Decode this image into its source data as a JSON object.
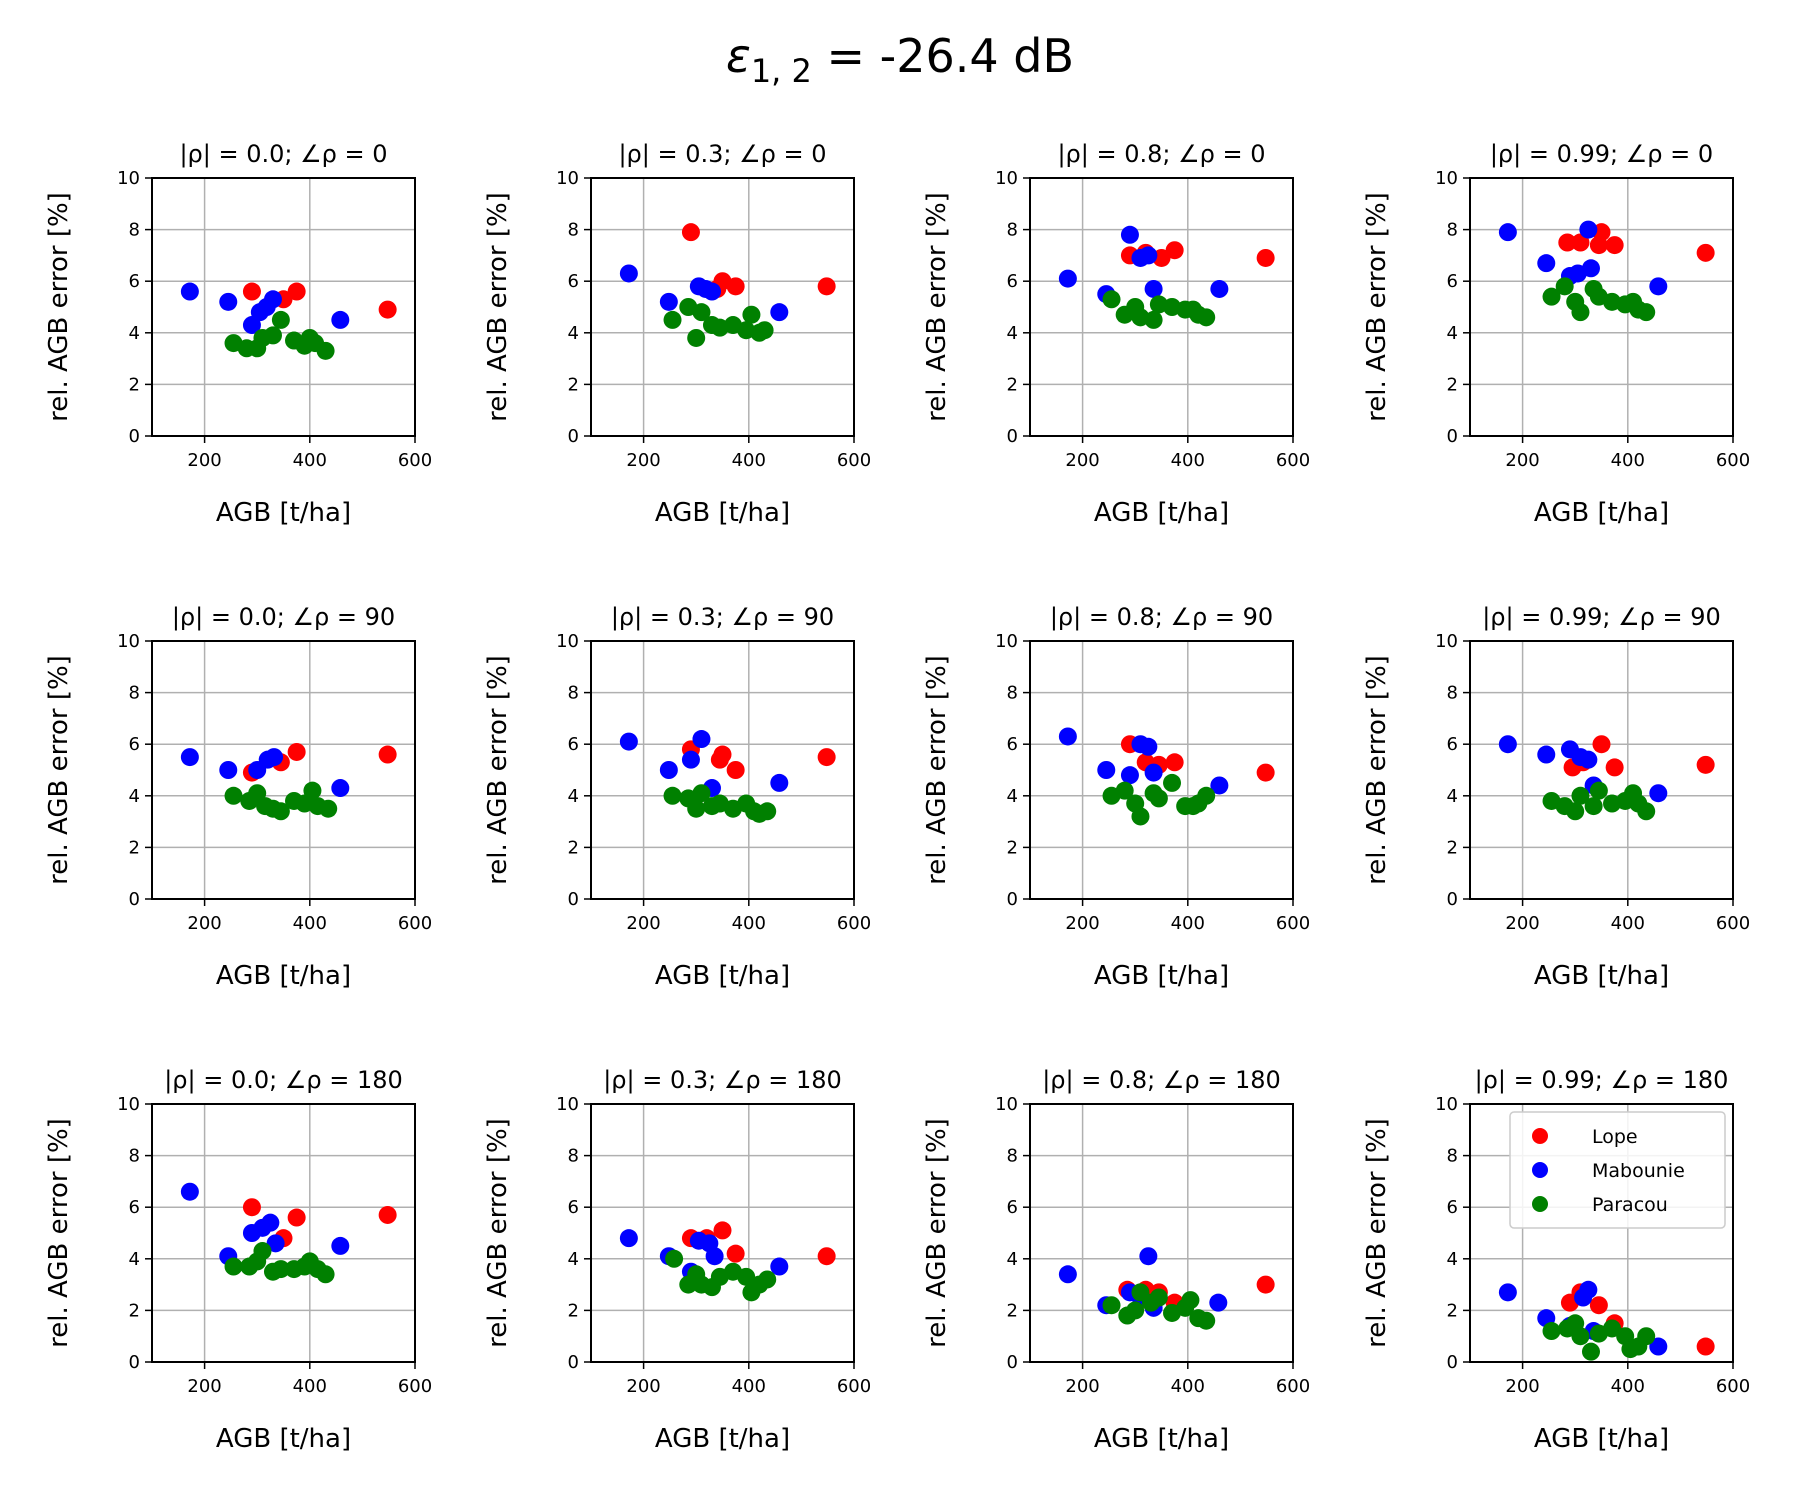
{
  "figure": {
    "title_symbol": "ε",
    "title_subscript": "1, 2",
    "title_suffix": " = -26.4 dB"
  },
  "colors": {
    "Lope": "#ff0000",
    "Mabounie": "#0000ff",
    "Paracou": "#008000",
    "grid": "#b0b0b0"
  },
  "chart_data": [
    {
      "type": "scatter",
      "title": "|ρ| = 0.0; ∠ρ =  0",
      "xlabel": "AGB [t/ha]",
      "ylabel": "rel. AGB error [%]",
      "xlim": [
        100,
        600
      ],
      "ylim": [
        0,
        10
      ],
      "xticks": [
        200,
        400,
        600
      ],
      "yticks": [
        0,
        2,
        4,
        6,
        8,
        10
      ],
      "grid": true,
      "series": [
        {
          "name": "Lope",
          "x": [
            290,
            350,
            375,
            548
          ],
          "y": [
            5.6,
            5.3,
            5.6,
            4.9
          ]
        },
        {
          "name": "Mabounie",
          "x": [
            172,
            245,
            290,
            305,
            318,
            330,
            458
          ],
          "y": [
            5.6,
            5.2,
            4.3,
            4.8,
            5.0,
            5.3,
            4.5
          ]
        },
        {
          "name": "Paracou",
          "x": [
            255,
            280,
            300,
            310,
            330,
            345,
            370,
            390,
            400,
            410,
            430
          ],
          "y": [
            3.6,
            3.4,
            3.4,
            3.8,
            3.9,
            4.5,
            3.7,
            3.5,
            3.8,
            3.6,
            3.3
          ]
        }
      ]
    },
    {
      "type": "scatter",
      "title": "|ρ| = 0.3; ∠ρ =  0",
      "xlabel": "AGB [t/ha]",
      "ylabel": "rel. AGB error [%]",
      "xlim": [
        100,
        600
      ],
      "ylim": [
        0,
        10
      ],
      "xticks": [
        200,
        400,
        600
      ],
      "yticks": [
        0,
        2,
        4,
        6,
        8,
        10
      ],
      "grid": true,
      "series": [
        {
          "name": "Lope",
          "x": [
            290,
            340,
            350,
            375,
            548
          ],
          "y": [
            7.9,
            5.7,
            6.0,
            5.8,
            5.8
          ]
        },
        {
          "name": "Mabounie",
          "x": [
            172,
            248,
            305,
            318,
            330,
            458
          ],
          "y": [
            6.3,
            5.2,
            5.8,
            5.7,
            5.6,
            4.8
          ]
        },
        {
          "name": "Paracou",
          "x": [
            255,
            285,
            300,
            310,
            330,
            345,
            370,
            395,
            405,
            420,
            430
          ],
          "y": [
            4.5,
            5.0,
            3.8,
            4.8,
            4.3,
            4.2,
            4.3,
            4.1,
            4.7,
            4.0,
            4.1
          ]
        }
      ]
    },
    {
      "type": "scatter",
      "title": "|ρ| = 0.8; ∠ρ =  0",
      "xlabel": "AGB [t/ha]",
      "ylabel": "rel. AGB error [%]",
      "xlim": [
        100,
        600
      ],
      "ylim": [
        0,
        10
      ],
      "xticks": [
        200,
        400,
        600
      ],
      "yticks": [
        0,
        2,
        4,
        6,
        8,
        10
      ],
      "grid": true,
      "series": [
        {
          "name": "Lope",
          "x": [
            290,
            320,
            350,
            375,
            548
          ],
          "y": [
            7.0,
            7.1,
            6.9,
            7.2,
            6.9
          ]
        },
        {
          "name": "Mabounie",
          "x": [
            172,
            245,
            290,
            310,
            325,
            335,
            460
          ],
          "y": [
            6.1,
            5.5,
            7.8,
            6.9,
            7.0,
            5.7,
            5.7
          ]
        },
        {
          "name": "Paracou",
          "x": [
            255,
            280,
            300,
            310,
            335,
            345,
            370,
            395,
            410,
            420,
            435
          ],
          "y": [
            5.3,
            4.7,
            5.0,
            4.6,
            4.5,
            5.1,
            5.0,
            4.9,
            4.9,
            4.7,
            4.6
          ]
        }
      ]
    },
    {
      "type": "scatter",
      "title": "|ρ| = 0.99; ∠ρ =  0",
      "xlabel": "AGB [t/ha]",
      "ylabel": "rel. AGB error [%]",
      "xlim": [
        100,
        600
      ],
      "ylim": [
        0,
        10
      ],
      "xticks": [
        200,
        400,
        600
      ],
      "yticks": [
        0,
        2,
        4,
        6,
        8,
        10
      ],
      "grid": true,
      "series": [
        {
          "name": "Lope",
          "x": [
            285,
            310,
            345,
            350,
            375,
            548
          ],
          "y": [
            7.5,
            7.5,
            7.4,
            7.9,
            7.4,
            7.1
          ]
        },
        {
          "name": "Mabounie",
          "x": [
            172,
            245,
            290,
            305,
            325,
            330,
            458
          ],
          "y": [
            7.9,
            6.7,
            6.2,
            6.3,
            8.0,
            6.5,
            5.8
          ]
        },
        {
          "name": "Paracou",
          "x": [
            255,
            280,
            300,
            310,
            335,
            345,
            370,
            395,
            410,
            420,
            435
          ],
          "y": [
            5.4,
            5.8,
            5.2,
            4.8,
            5.7,
            5.4,
            5.2,
            5.1,
            5.2,
            4.9,
            4.8
          ]
        }
      ]
    },
    {
      "type": "scatter",
      "title": "|ρ| = 0.0; ∠ρ =  90",
      "xlabel": "AGB [t/ha]",
      "ylabel": "rel. AGB error [%]",
      "xlim": [
        100,
        600
      ],
      "ylim": [
        0,
        10
      ],
      "xticks": [
        200,
        400,
        600
      ],
      "yticks": [
        0,
        2,
        4,
        6,
        8,
        10
      ],
      "grid": true,
      "series": [
        {
          "name": "Lope",
          "x": [
            290,
            345,
            375,
            548
          ],
          "y": [
            4.9,
            5.3,
            5.7,
            5.6
          ]
        },
        {
          "name": "Mabounie",
          "x": [
            172,
            245,
            300,
            320,
            332,
            458
          ],
          "y": [
            5.5,
            5.0,
            5.0,
            5.4,
            5.5,
            4.3
          ]
        },
        {
          "name": "Paracou",
          "x": [
            255,
            285,
            300,
            315,
            330,
            345,
            370,
            390,
            405,
            415,
            435
          ],
          "y": [
            4.0,
            3.8,
            4.1,
            3.6,
            3.5,
            3.4,
            3.8,
            3.7,
            4.2,
            3.6,
            3.5
          ]
        }
      ]
    },
    {
      "type": "scatter",
      "title": "|ρ| = 0.3; ∠ρ =  90",
      "xlabel": "AGB [t/ha]",
      "ylabel": "rel. AGB error [%]",
      "xlim": [
        100,
        600
      ],
      "ylim": [
        0,
        10
      ],
      "xticks": [
        200,
        400,
        600
      ],
      "yticks": [
        0,
        2,
        4,
        6,
        8,
        10
      ],
      "grid": true,
      "series": [
        {
          "name": "Lope",
          "x": [
            290,
            345,
            350,
            375,
            548
          ],
          "y": [
            5.8,
            5.4,
            5.6,
            5.0,
            5.5
          ]
        },
        {
          "name": "Mabounie",
          "x": [
            172,
            248,
            290,
            310,
            330,
            458
          ],
          "y": [
            6.1,
            5.0,
            5.4,
            6.2,
            4.3,
            4.5
          ]
        },
        {
          "name": "Paracou",
          "x": [
            255,
            285,
            300,
            310,
            330,
            345,
            370,
            395,
            410,
            420,
            435
          ],
          "y": [
            4.0,
            3.9,
            3.5,
            4.1,
            3.6,
            3.7,
            3.5,
            3.7,
            3.4,
            3.3,
            3.4
          ]
        }
      ]
    },
    {
      "type": "scatter",
      "title": "|ρ| = 0.8; ∠ρ =  90",
      "xlabel": "AGB [t/ha]",
      "ylabel": "rel. AGB error [%]",
      "xlim": [
        100,
        600
      ],
      "ylim": [
        0,
        10
      ],
      "xticks": [
        200,
        400,
        600
      ],
      "yticks": [
        0,
        2,
        4,
        6,
        8,
        10
      ],
      "grid": true,
      "series": [
        {
          "name": "Lope",
          "x": [
            290,
            320,
            345,
            375,
            548
          ],
          "y": [
            6.0,
            5.3,
            5.2,
            5.3,
            4.9
          ]
        },
        {
          "name": "Mabounie",
          "x": [
            172,
            245,
            290,
            310,
            325,
            335,
            460
          ],
          "y": [
            6.3,
            5.0,
            4.8,
            6.0,
            5.9,
            4.9,
            4.4
          ]
        },
        {
          "name": "Paracou",
          "x": [
            255,
            280,
            300,
            310,
            335,
            345,
            370,
            395,
            410,
            420,
            435
          ],
          "y": [
            4.0,
            4.2,
            3.7,
            3.2,
            4.1,
            3.9,
            4.5,
            3.6,
            3.6,
            3.7,
            4.0
          ]
        }
      ]
    },
    {
      "type": "scatter",
      "title": "|ρ| = 0.99; ∠ρ =  90",
      "xlabel": "AGB [t/ha]",
      "ylabel": "rel. AGB error [%]",
      "xlim": [
        100,
        600
      ],
      "ylim": [
        0,
        10
      ],
      "xticks": [
        200,
        400,
        600
      ],
      "yticks": [
        0,
        2,
        4,
        6,
        8,
        10
      ],
      "grid": true,
      "series": [
        {
          "name": "Lope",
          "x": [
            295,
            315,
            350,
            375,
            548
          ],
          "y": [
            5.1,
            5.3,
            6.0,
            5.1,
            5.2
          ]
        },
        {
          "name": "Mabounie",
          "x": [
            172,
            245,
            290,
            310,
            325,
            335,
            458
          ],
          "y": [
            6.0,
            5.6,
            5.8,
            5.5,
            5.4,
            4.4,
            4.1
          ]
        },
        {
          "name": "Paracou",
          "x": [
            255,
            280,
            300,
            310,
            335,
            345,
            370,
            395,
            410,
            420,
            435
          ],
          "y": [
            3.8,
            3.6,
            3.4,
            4.0,
            3.6,
            4.2,
            3.7,
            3.8,
            4.1,
            3.7,
            3.4
          ]
        }
      ]
    },
    {
      "type": "scatter",
      "title": "|ρ| = 0.0; ∠ρ =  180",
      "xlabel": "AGB [t/ha]",
      "ylabel": "rel. AGB error [%]",
      "xlim": [
        100,
        600
      ],
      "ylim": [
        0,
        10
      ],
      "xticks": [
        200,
        400,
        600
      ],
      "yticks": [
        0,
        2,
        4,
        6,
        8,
        10
      ],
      "grid": true,
      "series": [
        {
          "name": "Lope",
          "x": [
            290,
            350,
            375,
            548
          ],
          "y": [
            6.0,
            4.8,
            5.6,
            5.7
          ]
        },
        {
          "name": "Mabounie",
          "x": [
            172,
            245,
            290,
            310,
            325,
            335,
            458
          ],
          "y": [
            6.6,
            4.1,
            5.0,
            5.2,
            5.4,
            4.6,
            4.5
          ]
        },
        {
          "name": "Paracou",
          "x": [
            255,
            285,
            300,
            310,
            330,
            345,
            370,
            390,
            400,
            415,
            430
          ],
          "y": [
            3.7,
            3.7,
            3.9,
            4.3,
            3.5,
            3.6,
            3.6,
            3.7,
            3.9,
            3.6,
            3.4
          ]
        }
      ]
    },
    {
      "type": "scatter",
      "title": "|ρ| = 0.3; ∠ρ =  180",
      "xlabel": "AGB [t/ha]",
      "ylabel": "rel. AGB error [%]",
      "xlim": [
        100,
        600
      ],
      "ylim": [
        0,
        10
      ],
      "xticks": [
        200,
        400,
        600
      ],
      "yticks": [
        0,
        2,
        4,
        6,
        8,
        10
      ],
      "grid": true,
      "series": [
        {
          "name": "Lope",
          "x": [
            290,
            320,
            350,
            375,
            548
          ],
          "y": [
            4.8,
            4.8,
            5.1,
            4.2,
            4.1
          ]
        },
        {
          "name": "Mabounie",
          "x": [
            172,
            248,
            290,
            305,
            325,
            335,
            458
          ],
          "y": [
            4.8,
            4.1,
            3.5,
            4.7,
            4.6,
            4.1,
            3.7
          ]
        },
        {
          "name": "Paracou",
          "x": [
            258,
            285,
            300,
            310,
            330,
            345,
            370,
            395,
            405,
            420,
            435
          ],
          "y": [
            4.0,
            3.0,
            3.4,
            3.0,
            2.9,
            3.3,
            3.5,
            3.3,
            2.7,
            3.0,
            3.2
          ]
        }
      ]
    },
    {
      "type": "scatter",
      "title": "|ρ| = 0.8; ∠ρ =  180",
      "xlabel": "AGB [t/ha]",
      "ylabel": "rel. AGB error [%]",
      "xlim": [
        100,
        600
      ],
      "ylim": [
        0,
        10
      ],
      "xticks": [
        200,
        400,
        600
      ],
      "yticks": [
        0,
        2,
        4,
        6,
        8,
        10
      ],
      "grid": true,
      "series": [
        {
          "name": "Lope",
          "x": [
            285,
            320,
            345,
            375,
            548
          ],
          "y": [
            2.8,
            2.8,
            2.7,
            2.3,
            3.0
          ]
        },
        {
          "name": "Mabounie",
          "x": [
            172,
            245,
            290,
            310,
            325,
            335,
            458
          ],
          "y": [
            3.4,
            2.2,
            2.7,
            2.5,
            4.1,
            2.1,
            2.3
          ]
        },
        {
          "name": "Paracou",
          "x": [
            255,
            285,
            300,
            310,
            330,
            345,
            370,
            395,
            405,
            420,
            435
          ],
          "y": [
            2.2,
            1.8,
            2.0,
            2.7,
            2.3,
            2.5,
            1.9,
            2.1,
            2.4,
            1.7,
            1.6
          ]
        }
      ]
    },
    {
      "type": "scatter",
      "title": "|ρ| = 0.99; ∠ρ =  180",
      "xlabel": "AGB [t/ha]",
      "ylabel": "rel. AGB error [%]",
      "xlim": [
        100,
        600
      ],
      "ylim": [
        0,
        10
      ],
      "xticks": [
        200,
        400,
        600
      ],
      "yticks": [
        0,
        2,
        4,
        6,
        8,
        10
      ],
      "grid": true,
      "legend": {
        "position": "upper right",
        "entries": [
          "Lope",
          "Mabounie",
          "Paracou"
        ]
      },
      "series": [
        {
          "name": "Lope",
          "x": [
            290,
            310,
            345,
            375,
            548
          ],
          "y": [
            2.3,
            2.7,
            2.2,
            1.5,
            0.6
          ]
        },
        {
          "name": "Mabounie",
          "x": [
            172,
            245,
            290,
            315,
            325,
            335,
            458
          ],
          "y": [
            2.7,
            1.7,
            1.4,
            2.5,
            2.8,
            1.2,
            0.6
          ]
        },
        {
          "name": "Paracou",
          "x": [
            255,
            285,
            300,
            310,
            330,
            345,
            370,
            395,
            405,
            420,
            435
          ],
          "y": [
            1.2,
            1.3,
            1.5,
            1.0,
            0.4,
            1.1,
            1.3,
            1.0,
            0.5,
            0.6,
            1.0
          ]
        }
      ]
    }
  ]
}
